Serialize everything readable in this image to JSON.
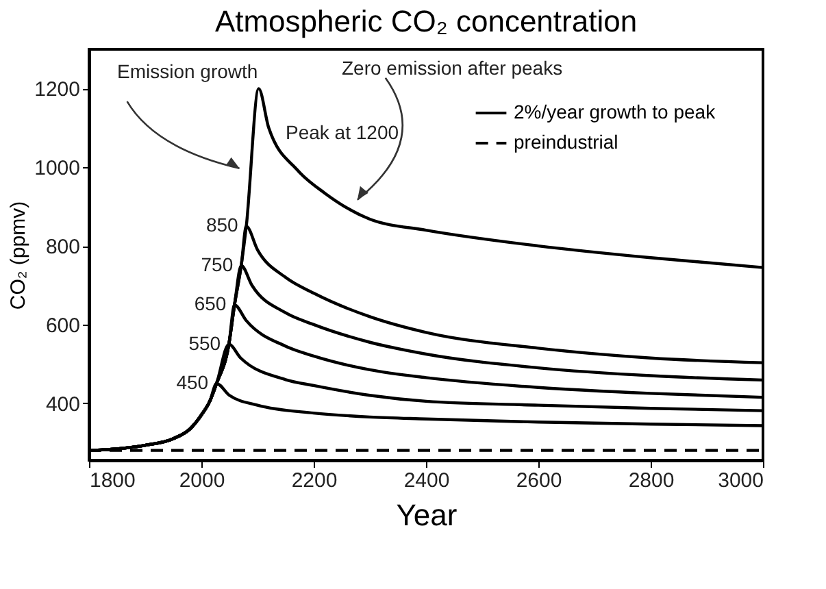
{
  "chart_data": {
    "type": "line",
    "title": "Atmospheric CO₂ concentration",
    "xlabel": "Year",
    "ylabel": "CO₂ (ppmv)",
    "xlim": [
      1800,
      3000
    ],
    "xticks": [
      1800,
      2000,
      2200,
      2400,
      2600,
      2800,
      3000
    ],
    "ylim": [
      255,
      1300
    ],
    "yticks": [
      400,
      600,
      800,
      1000,
      1200
    ],
    "grid": false,
    "legend": "top right",
    "marker": "none",
    "annotations": [
      "Emission growth",
      "Zero emission after peaks",
      "Peak at 1200",
      {
        "text": "850",
        "x": 2080,
        "y": 850
      },
      {
        "text": "750",
        "x": 2071,
        "y": 750
      },
      {
        "text": "650",
        "x": 2059,
        "y": 650
      },
      {
        "text": "550",
        "x": 2049,
        "y": 550
      },
      {
        "text": "450",
        "x": 2027,
        "y": 450
      }
    ],
    "series": [
      {
        "name": "2%/year growth to peak",
        "color": "#000000",
        "line_style": "solid",
        "x": [
          1800,
          1850,
          1900,
          1950,
          1980,
          2000,
          2015,
          2027,
          2049,
          2059,
          2071,
          2080,
          2102,
          2120,
          2171,
          2220,
          2300,
          2400,
          2600,
          2800,
          3000
        ],
        "values": [
          280,
          284,
          293,
          310,
          335,
          370,
          405,
          450,
          550,
          650,
          750,
          850,
          1200,
          1100,
          993,
          934,
          868,
          840,
          800,
          770,
          745
        ]
      },
      {
        "color": "#000000",
        "line_style": "solid",
        "x": [
          1800,
          1850,
          1900,
          1950,
          1980,
          2000,
          2015,
          2027,
          2049,
          2059,
          2071,
          2080,
          2100,
          2150,
          2200,
          2300,
          2400,
          2600,
          2800,
          3000
        ],
        "values": [
          280,
          284,
          293,
          310,
          335,
          370,
          405,
          450,
          550,
          650,
          750,
          850,
          790,
          720,
          680,
          620,
          580,
          540,
          515,
          503
        ]
      },
      {
        "color": "#000000",
        "line_style": "solid",
        "x": [
          1800,
          1850,
          1900,
          1950,
          1980,
          2000,
          2015,
          2027,
          2049,
          2059,
          2071,
          2090,
          2150,
          2200,
          2300,
          2400,
          2600,
          2800,
          3000
        ],
        "values": [
          280,
          284,
          293,
          310,
          335,
          370,
          405,
          450,
          550,
          650,
          750,
          700,
          630,
          600,
          555,
          525,
          490,
          470,
          459
        ]
      },
      {
        "color": "#000000",
        "line_style": "solid",
        "x": [
          1800,
          1850,
          1900,
          1950,
          1980,
          2000,
          2015,
          2027,
          2049,
          2059,
          2080,
          2150,
          2200,
          2300,
          2400,
          2600,
          2800,
          3000
        ],
        "values": [
          280,
          284,
          293,
          310,
          335,
          370,
          405,
          450,
          550,
          650,
          610,
          545,
          520,
          485,
          465,
          440,
          425,
          415
        ]
      },
      {
        "color": "#000000",
        "line_style": "solid",
        "x": [
          1800,
          1850,
          1900,
          1950,
          1980,
          2000,
          2015,
          2027,
          2049,
          2070,
          2150,
          2200,
          2300,
          2400,
          2600,
          2800,
          3000
        ],
        "values": [
          280,
          284,
          293,
          310,
          335,
          370,
          405,
          450,
          550,
          515,
          460,
          445,
          420,
          405,
          395,
          387,
          381
        ]
      },
      {
        "color": "#000000",
        "line_style": "solid",
        "x": [
          1800,
          1850,
          1900,
          1950,
          1980,
          2000,
          2015,
          2027,
          2050,
          2100,
          2200,
          2300,
          2400,
          2600,
          2800,
          3000
        ],
        "values": [
          280,
          284,
          293,
          310,
          335,
          370,
          405,
          450,
          420,
          395,
          375,
          365,
          360,
          352,
          347,
          343
        ]
      },
      {
        "name": "preindustrial",
        "color": "#000000",
        "line_style": "dashed",
        "x": [
          1800,
          3000
        ],
        "values": [
          280,
          280
        ]
      }
    ]
  }
}
